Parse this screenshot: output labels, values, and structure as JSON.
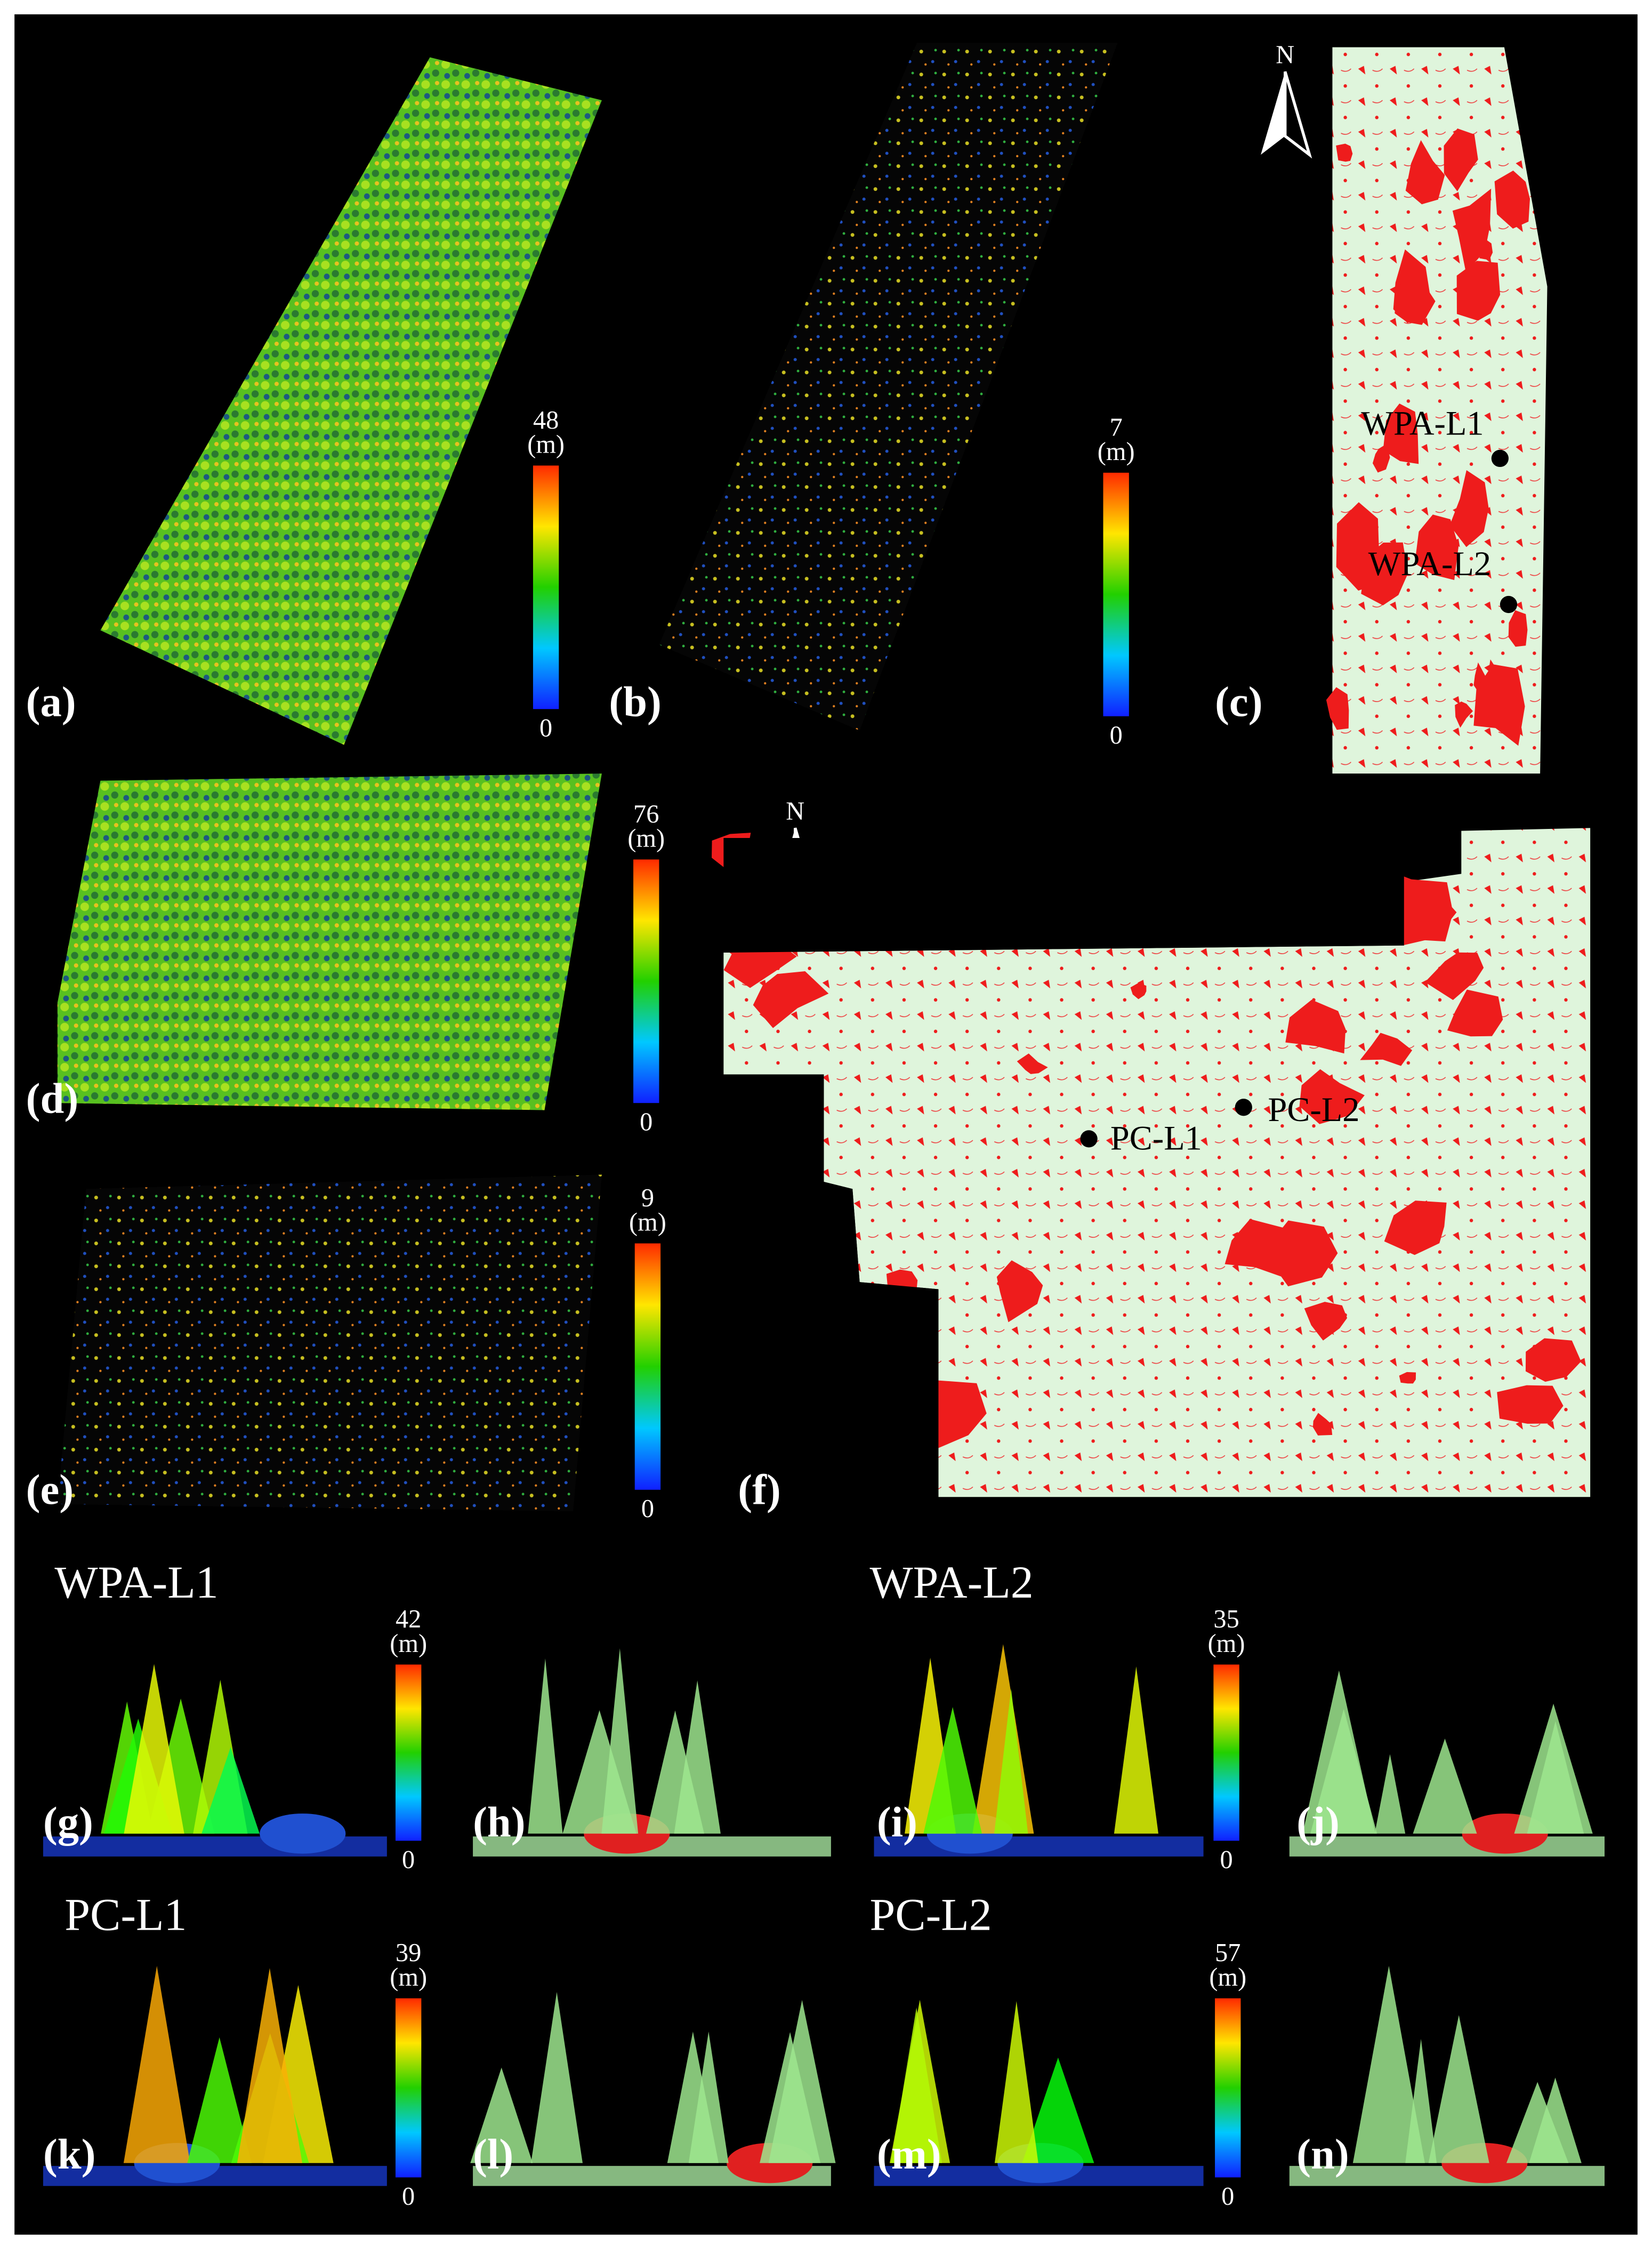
{
  "panels": [
    "(a)",
    "(b)",
    "(c)",
    "(d)",
    "(e)",
    "(f)",
    "(g)",
    "(h)",
    "(i)",
    "(j)",
    "(k)",
    "(l)",
    "(m)",
    "(n)"
  ],
  "colorbars": [
    {
      "max": 48,
      "unit": "(m)",
      "min": 0
    },
    {
      "max": 7,
      "unit": "(m)",
      "min": 0
    },
    {
      "max": 76,
      "unit": "(m)",
      "min": 0
    },
    {
      "max": 9,
      "unit": "(m)",
      "min": 0
    },
    {
      "max": 42,
      "unit": "(m)",
      "min": 0
    },
    {
      "max": 35,
      "unit": "(m)",
      "min": 0
    },
    {
      "max": 39,
      "unit": "(m)",
      "min": 0
    },
    {
      "max": 57,
      "unit": "(m)",
      "min": 0
    }
  ],
  "maps": [
    {
      "north": "N",
      "sites": [
        "WPA-L1",
        "WPA-L2"
      ]
    },
    {
      "north": "N",
      "sites": [
        "PC-L1",
        "PC-L2"
      ]
    }
  ],
  "section_titles": [
    "WPA-L1",
    "WPA-L2",
    "PC-L1",
    "PC-L2"
  ]
}
